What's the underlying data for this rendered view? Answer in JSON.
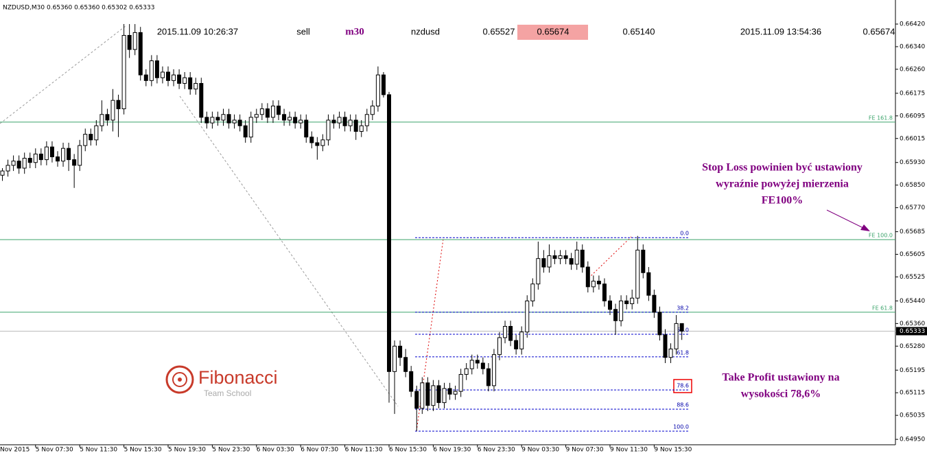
{
  "chart_data": {
    "type": "candlestick",
    "title": "NZDUSD,M30  0.65360 0.65360 0.65302 0.65333",
    "info_bar": [
      "2015.11.09 10:26:37",
      "sell",
      "m30",
      "nzdusd",
      "0.65527",
      "0.65674",
      "0.65140",
      "2015.11.09 13:54:36",
      "0.65674"
    ],
    "x_start_label": "Nov 2015",
    "categories": [
      null,
      null,
      null,
      null,
      null,
      null,
      "5 Nov 07:30",
      null,
      null,
      null,
      null,
      null,
      null,
      null,
      "5 Nov 11:30",
      null,
      null,
      null,
      null,
      null,
      null,
      null,
      "5 Nov 15:30",
      null,
      null,
      null,
      null,
      null,
      null,
      null,
      "5 Nov 19:30",
      null,
      null,
      null,
      null,
      null,
      null,
      null,
      "5 Nov 23:30",
      null,
      null,
      null,
      null,
      null,
      null,
      null,
      "6 Nov 03:30",
      null,
      null,
      null,
      null,
      null,
      null,
      null,
      "6 Nov 07:30",
      null,
      null,
      null,
      null,
      null,
      null,
      null,
      "6 Nov 11:30",
      null,
      null,
      null,
      null,
      null,
      null,
      null,
      "6 Nov 15:30",
      null,
      null,
      null,
      null,
      null,
      null,
      null,
      "6 Nov 19:30",
      null,
      null,
      null,
      null,
      null,
      null,
      null,
      "6 Nov 23:30",
      null,
      null,
      null,
      null,
      null,
      null,
      null,
      "9 Nov 03:30",
      null,
      null,
      null,
      null,
      null,
      null,
      null,
      "9 Nov 07:30",
      null,
      null,
      null,
      null,
      null,
      null,
      null,
      "9 Nov 11:30",
      null,
      null,
      null,
      null,
      null,
      null,
      null,
      "9 Nov 15:30",
      null,
      null,
      null,
      null,
      null
    ],
    "ohlc": [
      [
        0.65885,
        0.6591,
        0.65865,
        0.659
      ],
      [
        0.659,
        0.6594,
        0.6588,
        0.6592
      ],
      [
        0.6592,
        0.65955,
        0.659,
        0.65935
      ],
      [
        0.65935,
        0.65955,
        0.6589,
        0.6591
      ],
      [
        0.6591,
        0.65965,
        0.6589,
        0.65945
      ],
      [
        0.65945,
        0.65965,
        0.6591,
        0.6593
      ],
      [
        0.6593,
        0.6598,
        0.6591,
        0.6596
      ],
      [
        0.6596,
        0.6598,
        0.6592,
        0.6594
      ],
      [
        0.6594,
        0.66005,
        0.6592,
        0.65985
      ],
      [
        0.65985,
        0.66005,
        0.6593,
        0.6595
      ],
      [
        0.6595,
        0.6597,
        0.65915,
        0.65935
      ],
      [
        0.65935,
        0.66,
        0.65915,
        0.6598
      ],
      [
        0.6598,
        0.66,
        0.659,
        0.6594
      ],
      [
        0.6594,
        0.6596,
        0.6584,
        0.6592
      ],
      [
        0.6592,
        0.6601,
        0.659,
        0.6599
      ],
      [
        0.6599,
        0.6605,
        0.6597,
        0.6603
      ],
      [
        0.6603,
        0.6605,
        0.6599,
        0.6601
      ],
      [
        0.6601,
        0.6608,
        0.6599,
        0.6606
      ],
      [
        0.6606,
        0.6615,
        0.6604,
        0.661
      ],
      [
        0.661,
        0.6612,
        0.6606,
        0.6608
      ],
      [
        0.6608,
        0.6619,
        0.6604,
        0.6615
      ],
      [
        0.6615,
        0.6617,
        0.6602,
        0.6612
      ],
      [
        0.6612,
        0.6642,
        0.661,
        0.6638
      ],
      [
        0.6638,
        0.6642,
        0.663,
        0.6633
      ],
      [
        0.6633,
        0.6642,
        0.6631,
        0.6639
      ],
      [
        0.6639,
        0.6641,
        0.6622,
        0.6624
      ],
      [
        0.6624,
        0.6626,
        0.662,
        0.6622
      ],
      [
        0.6622,
        0.6631,
        0.662,
        0.6629
      ],
      [
        0.6629,
        0.6631,
        0.6621,
        0.6623
      ],
      [
        0.6623,
        0.6627,
        0.6621,
        0.6625
      ],
      [
        0.6625,
        0.6627,
        0.662,
        0.6622
      ],
      [
        0.6622,
        0.6626,
        0.662,
        0.6624
      ],
      [
        0.6624,
        0.6626,
        0.6619,
        0.6621
      ],
      [
        0.6621,
        0.6625,
        0.6619,
        0.6623
      ],
      [
        0.6623,
        0.6625,
        0.6617,
        0.6619
      ],
      [
        0.6619,
        0.6623,
        0.6617,
        0.6621
      ],
      [
        0.6621,
        0.6623,
        0.6607,
        0.6609
      ],
      [
        0.6609,
        0.6611,
        0.6605,
        0.6607
      ],
      [
        0.6607,
        0.6611,
        0.6605,
        0.6609
      ],
      [
        0.6609,
        0.6611,
        0.6606,
        0.6608
      ],
      [
        0.6608,
        0.6612,
        0.6606,
        0.661
      ],
      [
        0.661,
        0.6612,
        0.6605,
        0.6607
      ],
      [
        0.6607,
        0.661,
        0.6605,
        0.6608
      ],
      [
        0.6608,
        0.661,
        0.6604,
        0.6606
      ],
      [
        0.6606,
        0.6608,
        0.66,
        0.6602
      ],
      [
        0.6602,
        0.6611,
        0.66,
        0.6609
      ],
      [
        0.6609,
        0.6612,
        0.6607,
        0.661
      ],
      [
        0.661,
        0.6614,
        0.6608,
        0.6612
      ],
      [
        0.6612,
        0.6614,
        0.6607,
        0.6609
      ],
      [
        0.6609,
        0.6615,
        0.6607,
        0.6613
      ],
      [
        0.6613,
        0.6615,
        0.6608,
        0.661
      ],
      [
        0.661,
        0.6612,
        0.6606,
        0.6608
      ],
      [
        0.6608,
        0.6611,
        0.6606,
        0.6609
      ],
      [
        0.6609,
        0.6611,
        0.6605,
        0.6607
      ],
      [
        0.6607,
        0.661,
        0.6605,
        0.6608
      ],
      [
        0.6608,
        0.661,
        0.66,
        0.6602
      ],
      [
        0.6602,
        0.6604,
        0.6598,
        0.66
      ],
      [
        0.66,
        0.6602,
        0.6594,
        0.6599
      ],
      [
        0.6599,
        0.6603,
        0.6597,
        0.6601
      ],
      [
        0.6601,
        0.661,
        0.6599,
        0.6608
      ],
      [
        0.6608,
        0.661,
        0.6605,
        0.6607
      ],
      [
        0.6607,
        0.6611,
        0.6605,
        0.6609
      ],
      [
        0.6609,
        0.6611,
        0.6604,
        0.6606
      ],
      [
        0.6606,
        0.661,
        0.6604,
        0.6608
      ],
      [
        0.6608,
        0.661,
        0.6601,
        0.6604
      ],
      [
        0.6604,
        0.6608,
        0.6602,
        0.6606
      ],
      [
        0.6606,
        0.6612,
        0.6604,
        0.661
      ],
      [
        0.661,
        0.6615,
        0.6608,
        0.6613
      ],
      [
        0.6613,
        0.6627,
        0.6611,
        0.6624
      ],
      [
        0.6624,
        0.6625,
        0.6616,
        0.6617
      ],
      [
        0.6617,
        0.6618,
        0.6508,
        0.6519
      ],
      [
        0.6519,
        0.653,
        0.6504,
        0.6528
      ],
      [
        0.6528,
        0.653,
        0.6521,
        0.6524
      ],
      [
        0.6524,
        0.6527,
        0.6517,
        0.6519
      ],
      [
        0.6519,
        0.6521,
        0.651,
        0.6512
      ],
      [
        0.6512,
        0.6514,
        0.6498,
        0.6506
      ],
      [
        0.6506,
        0.6517,
        0.6504,
        0.6515
      ],
      [
        0.6515,
        0.6517,
        0.6505,
        0.6507
      ],
      [
        0.6507,
        0.6516,
        0.6505,
        0.6514
      ],
      [
        0.6514,
        0.6516,
        0.6506,
        0.6508
      ],
      [
        0.6508,
        0.6515,
        0.6506,
        0.6513
      ],
      [
        0.6513,
        0.6515,
        0.6509,
        0.6511
      ],
      [
        0.6511,
        0.6514,
        0.6509,
        0.6512
      ],
      [
        0.6512,
        0.652,
        0.651,
        0.6518
      ],
      [
        0.6518,
        0.6522,
        0.6516,
        0.652
      ],
      [
        0.652,
        0.6525,
        0.6518,
        0.6523
      ],
      [
        0.6523,
        0.6525,
        0.652,
        0.6522
      ],
      [
        0.6522,
        0.6524,
        0.6518,
        0.652
      ],
      [
        0.652,
        0.6522,
        0.6512,
        0.6514
      ],
      [
        0.6514,
        0.6527,
        0.6512,
        0.6525
      ],
      [
        0.6525,
        0.6533,
        0.6523,
        0.6531
      ],
      [
        0.6531,
        0.6537,
        0.6529,
        0.6535
      ],
      [
        0.6535,
        0.6537,
        0.6528,
        0.653
      ],
      [
        0.653,
        0.6532,
        0.6525,
        0.6527
      ],
      [
        0.6527,
        0.6535,
        0.6525,
        0.6533
      ],
      [
        0.6533,
        0.6546,
        0.6531,
        0.6544
      ],
      [
        0.6544,
        0.6552,
        0.6542,
        0.655
      ],
      [
        0.655,
        0.6565,
        0.6548,
        0.6559
      ],
      [
        0.6559,
        0.6562,
        0.6554,
        0.6556
      ],
      [
        0.6556,
        0.6564,
        0.6554,
        0.656
      ],
      [
        0.656,
        0.6562,
        0.6557,
        0.6559
      ],
      [
        0.6559,
        0.6562,
        0.6557,
        0.656
      ],
      [
        0.656,
        0.6562,
        0.6557,
        0.6559
      ],
      [
        0.6559,
        0.6561,
        0.6555,
        0.6557
      ],
      [
        0.6557,
        0.6565,
        0.6555,
        0.6562
      ],
      [
        0.6562,
        0.6564,
        0.6554,
        0.6556
      ],
      [
        0.6556,
        0.6558,
        0.6547,
        0.6549
      ],
      [
        0.6549,
        0.6553,
        0.6547,
        0.6551
      ],
      [
        0.6551,
        0.6553,
        0.6548,
        0.655
      ],
      [
        0.655,
        0.6552,
        0.6542,
        0.6544
      ],
      [
        0.6544,
        0.6546,
        0.6539,
        0.6541
      ],
      [
        0.6541,
        0.6543,
        0.6532,
        0.6537
      ],
      [
        0.6537,
        0.6546,
        0.6535,
        0.6544
      ],
      [
        0.6544,
        0.6546,
        0.6541,
        0.6543
      ],
      [
        0.6543,
        0.6548,
        0.6541,
        0.6545
      ],
      [
        0.6545,
        0.6567,
        0.6543,
        0.6562
      ],
      [
        0.6562,
        0.6564,
        0.6552,
        0.6554
      ],
      [
        0.6554,
        0.6556,
        0.6544,
        0.6546
      ],
      [
        0.6546,
        0.6548,
        0.6538,
        0.654
      ],
      [
        0.654,
        0.6542,
        0.653,
        0.6532
      ],
      [
        0.6532,
        0.6534,
        0.6522,
        0.6524
      ],
      [
        0.6524,
        0.6529,
        0.6522,
        0.6527
      ],
      [
        0.6527,
        0.6539,
        0.6525,
        0.6536
      ],
      [
        0.6536,
        0.6536,
        0.65302,
        0.65333
      ]
    ],
    "current_price": 0.65333,
    "ylim": [
      0.64926,
      0.66493
    ],
    "yticks": [
      {
        "value": 0.6642,
        "label": "0.66420"
      },
      {
        "value": 0.6634,
        "label": "0.66340"
      },
      {
        "value": 0.6626,
        "label": "0.66260"
      },
      0.66175,
      0.66095,
      0.66015,
      {
        "value": 0.6593,
        "label": "0.65930"
      },
      {
        "value": 0.6585,
        "label": "0.65850"
      },
      {
        "value": 0.6577,
        "label": "0.65770"
      },
      0.65685,
      0.65605,
      0.65525,
      {
        "value": 0.6544,
        "label": "0.65440"
      },
      {
        "value": 0.6536,
        "label": "0.65360"
      },
      {
        "value": 0.6528,
        "label": "0.65280"
      },
      0.65195,
      0.65115,
      0.65035,
      {
        "value": 0.6495,
        "label": "0.64950"
      }
    ],
    "fe_levels": [
      {
        "label": "FE 161.8",
        "price": 0.66073
      },
      {
        "label": "FE 100.0",
        "price": 0.65657
      },
      {
        "label": "FE 61.8",
        "price": 0.654
      }
    ],
    "fib_levels": [
      {
        "label": "0.0",
        "price": 0.65664
      },
      {
        "label": "38.2",
        "price": 0.654
      },
      {
        "label": "50.0",
        "price": 0.65322
      },
      {
        "label": "61.8",
        "price": 0.65242
      },
      {
        "label": "78.6",
        "price": 0.65125
      },
      {
        "label": "88.6",
        "price": 0.65057
      },
      {
        "label": "100.0",
        "price": 0.64979
      }
    ],
    "annotations": {
      "stop_loss": [
        "Stop Loss powinien być ustawiony",
        "wyraźnie powyżej mierzenia",
        "FE100%"
      ],
      "take_profit": [
        "Take Profit ustawiony na",
        "wysokości 78,6%"
      ]
    },
    "logo": {
      "name": "Fibonacci",
      "subtitle": "Team School"
    }
  }
}
